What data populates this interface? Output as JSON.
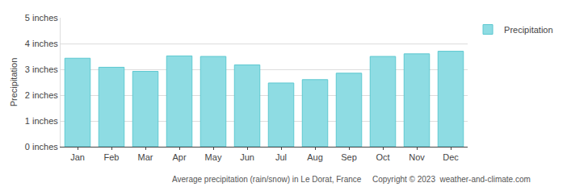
{
  "chart_data": {
    "type": "bar",
    "y_label": "Precipitation",
    "categories": [
      "Jan",
      "Feb",
      "Mar",
      "Apr",
      "May",
      "Jun",
      "Jul",
      "Aug",
      "Sep",
      "Oct",
      "Nov",
      "Dec"
    ],
    "series": [
      {
        "name": "Precipitation",
        "color": "#8edce3",
        "values": [
          3.43,
          3.08,
          2.92,
          3.52,
          3.5,
          3.17,
          2.47,
          2.6,
          2.85,
          3.5,
          3.6,
          3.7
        ]
      }
    ],
    "ylim": [
      0,
      5
    ],
    "yticks": [
      {
        "value": 0,
        "label": "0 inches"
      },
      {
        "value": 1,
        "label": "1 inches"
      },
      {
        "value": 2,
        "label": "2 inches"
      },
      {
        "value": 3,
        "label": "3 inches"
      },
      {
        "value": 4,
        "label": "4 inches"
      },
      {
        "value": 5,
        "label": "5 inches"
      }
    ],
    "grid": true,
    "legend": "top right",
    "annotations": [
      "Average precipitation (rain/snow) in Le Dorat, France",
      "Copyright © 2023  weather-and-climate.com"
    ]
  }
}
